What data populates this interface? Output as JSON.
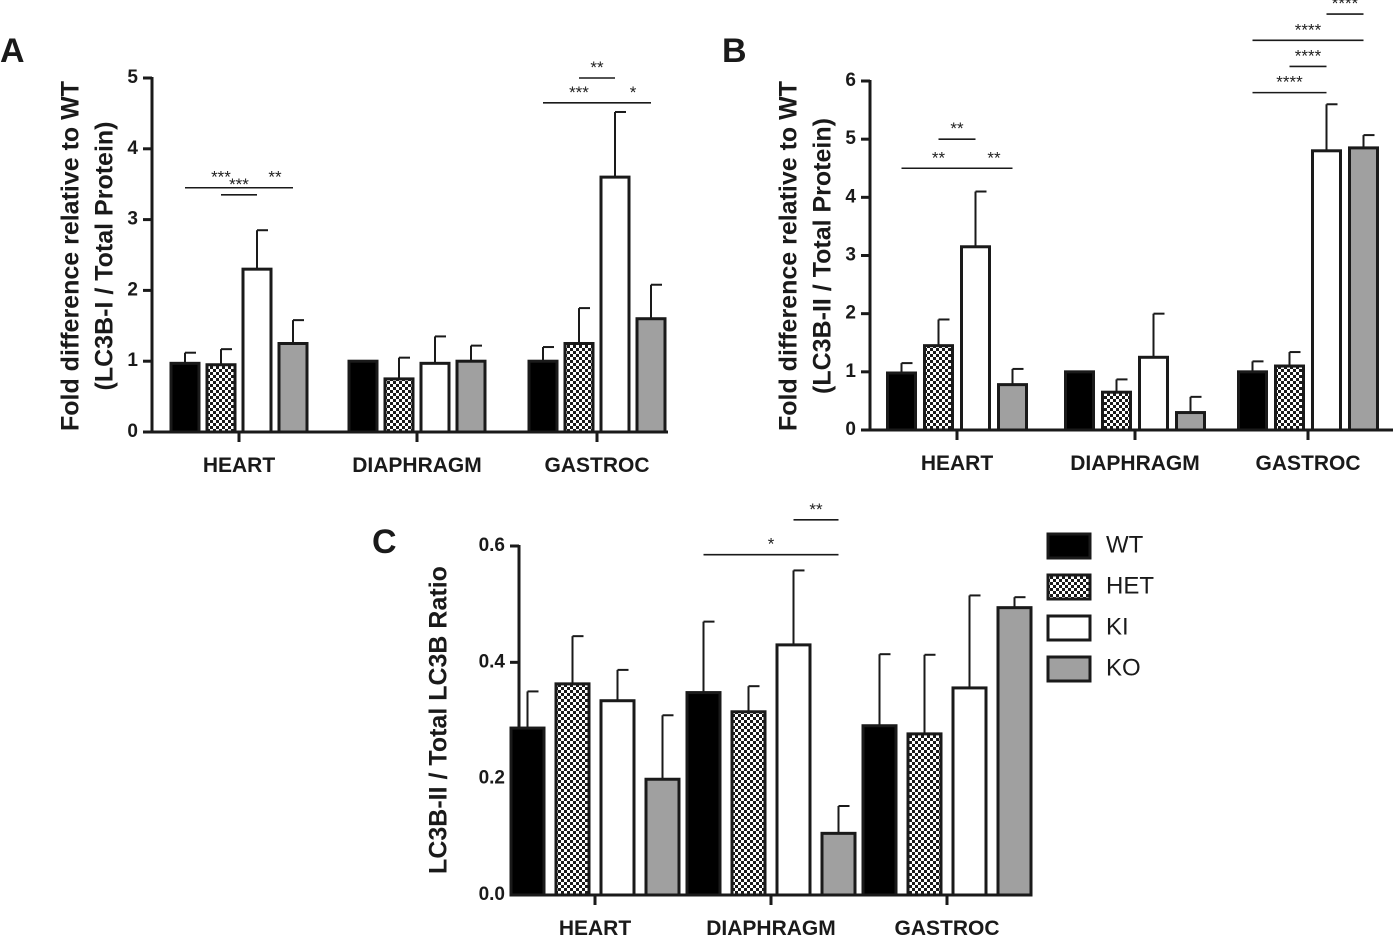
{
  "colors": {
    "WT": "#000000",
    "HET": "#d0d0d0",
    "KI": "#ffffff",
    "KO": "#a0a0a0",
    "axis": "#1a1a1a"
  },
  "legend": {
    "items": [
      {
        "label": "WT",
        "pattern": "solid-black"
      },
      {
        "label": "HET",
        "pattern": "checkered"
      },
      {
        "label": "KI",
        "pattern": "white"
      },
      {
        "label": "KO",
        "pattern": "solid-gray"
      }
    ]
  },
  "chart_data": [
    {
      "panel": "A",
      "type": "bar",
      "ylabel": [
        "Fold difference relative to WT",
        "(LC3B-I / Total Protein)"
      ],
      "ylim": [
        0,
        5
      ],
      "yticks": [
        "0",
        "1",
        "2",
        "3",
        "4",
        "5"
      ],
      "categories": [
        "HEART",
        "DIAPHRAGM",
        "GASTROC"
      ],
      "series": [
        {
          "name": "WT",
          "values": [
            0.97,
            1.0,
            1.0
          ],
          "errors": [
            0.15,
            0.0,
            0.2
          ]
        },
        {
          "name": "HET",
          "values": [
            0.95,
            0.75,
            1.25
          ],
          "errors": [
            0.22,
            0.3,
            0.5
          ]
        },
        {
          "name": "KI",
          "values": [
            2.3,
            0.97,
            3.6
          ],
          "errors": [
            0.55,
            0.38,
            0.92
          ]
        },
        {
          "name": "KO",
          "values": [
            1.25,
            1.0,
            1.6
          ],
          "errors": [
            0.33,
            0.22,
            0.48
          ]
        }
      ],
      "significance": [
        {
          "category": 0,
          "from": 2,
          "to": 3,
          "label": "**",
          "y": 3.45
        },
        {
          "category": 0,
          "from": 0,
          "to": 2,
          "label": "***",
          "y": 3.45
        },
        {
          "category": 0,
          "from": 1,
          "to": 2,
          "label": "***",
          "y": 3.35
        },
        {
          "category": 2,
          "from": 1,
          "to": 2,
          "label": "**",
          "y": 5.0
        },
        {
          "category": 2,
          "from": 0,
          "to": 2,
          "label": "***",
          "y": 4.65
        },
        {
          "category": 2,
          "from": 2,
          "to": 3,
          "label": "*",
          "y": 4.65
        }
      ]
    },
    {
      "panel": "B",
      "type": "bar",
      "ylabel": [
        "Fold difference relative to WT",
        "(LC3B-II / Total Protein)"
      ],
      "ylim": [
        0,
        6
      ],
      "yticks": [
        "0",
        "1",
        "2",
        "3",
        "4",
        "5",
        "6"
      ],
      "categories": [
        "HEART",
        "DIAPHRAGM",
        "GASTROC"
      ],
      "series": [
        {
          "name": "WT",
          "values": [
            0.98,
            1.0,
            1.0
          ],
          "errors": [
            0.17,
            0.0,
            0.18
          ]
        },
        {
          "name": "HET",
          "values": [
            1.45,
            0.65,
            1.1
          ],
          "errors": [
            0.45,
            0.22,
            0.24
          ]
        },
        {
          "name": "KI",
          "values": [
            3.15,
            1.25,
            4.8
          ],
          "errors": [
            0.95,
            0.75,
            0.8
          ]
        },
        {
          "name": "KO",
          "values": [
            0.78,
            0.3,
            4.85
          ],
          "errors": [
            0.27,
            0.27,
            0.22
          ]
        }
      ],
      "significance": [
        {
          "category": 0,
          "from": 1,
          "to": 2,
          "label": "**",
          "y": 5.0
        },
        {
          "category": 0,
          "from": 0,
          "to": 2,
          "label": "**",
          "y": 4.5
        },
        {
          "category": 0,
          "from": 2,
          "to": 3,
          "label": "**",
          "y": 4.5
        },
        {
          "category": 2,
          "from": 2,
          "to": 3,
          "label": "****",
          "y": 7.15
        },
        {
          "category": 2,
          "from": 0,
          "to": 3,
          "label": "****",
          "y": 6.7
        },
        {
          "category": 2,
          "from": 1,
          "to": 2,
          "label": "****",
          "y": 6.25
        },
        {
          "category": 2,
          "from": 0,
          "to": 2,
          "label": "****",
          "y": 5.8
        }
      ]
    },
    {
      "panel": "C",
      "type": "bar",
      "ylabel": [
        "LC3B-II / Total LC3B Ratio"
      ],
      "ylim": [
        0,
        0.6
      ],
      "yticks": [
        "0.0",
        "0.2",
        "0.4",
        "0.6"
      ],
      "categories": [
        "HEART",
        "DIAPHRAGM",
        "GASTROC"
      ],
      "series": [
        {
          "name": "WT",
          "values": [
            0.287,
            0.348,
            0.291
          ],
          "errors": [
            0.063,
            0.122,
            0.123
          ]
        },
        {
          "name": "HET",
          "values": [
            0.363,
            0.315,
            0.277
          ],
          "errors": [
            0.082,
            0.044,
            0.136
          ]
        },
        {
          "name": "KI",
          "values": [
            0.334,
            0.43,
            0.356
          ],
          "errors": [
            0.053,
            0.128,
            0.159
          ]
        },
        {
          "name": "KO",
          "values": [
            0.199,
            0.106,
            0.494
          ],
          "errors": [
            0.11,
            0.047,
            0.018
          ]
        }
      ],
      "significance": [
        {
          "category": 1,
          "from": 2,
          "to": 3,
          "label": "**",
          "y": 0.645
        },
        {
          "category": 1,
          "from": 0,
          "to": 3,
          "label": "*",
          "y": 0.585
        }
      ]
    }
  ]
}
